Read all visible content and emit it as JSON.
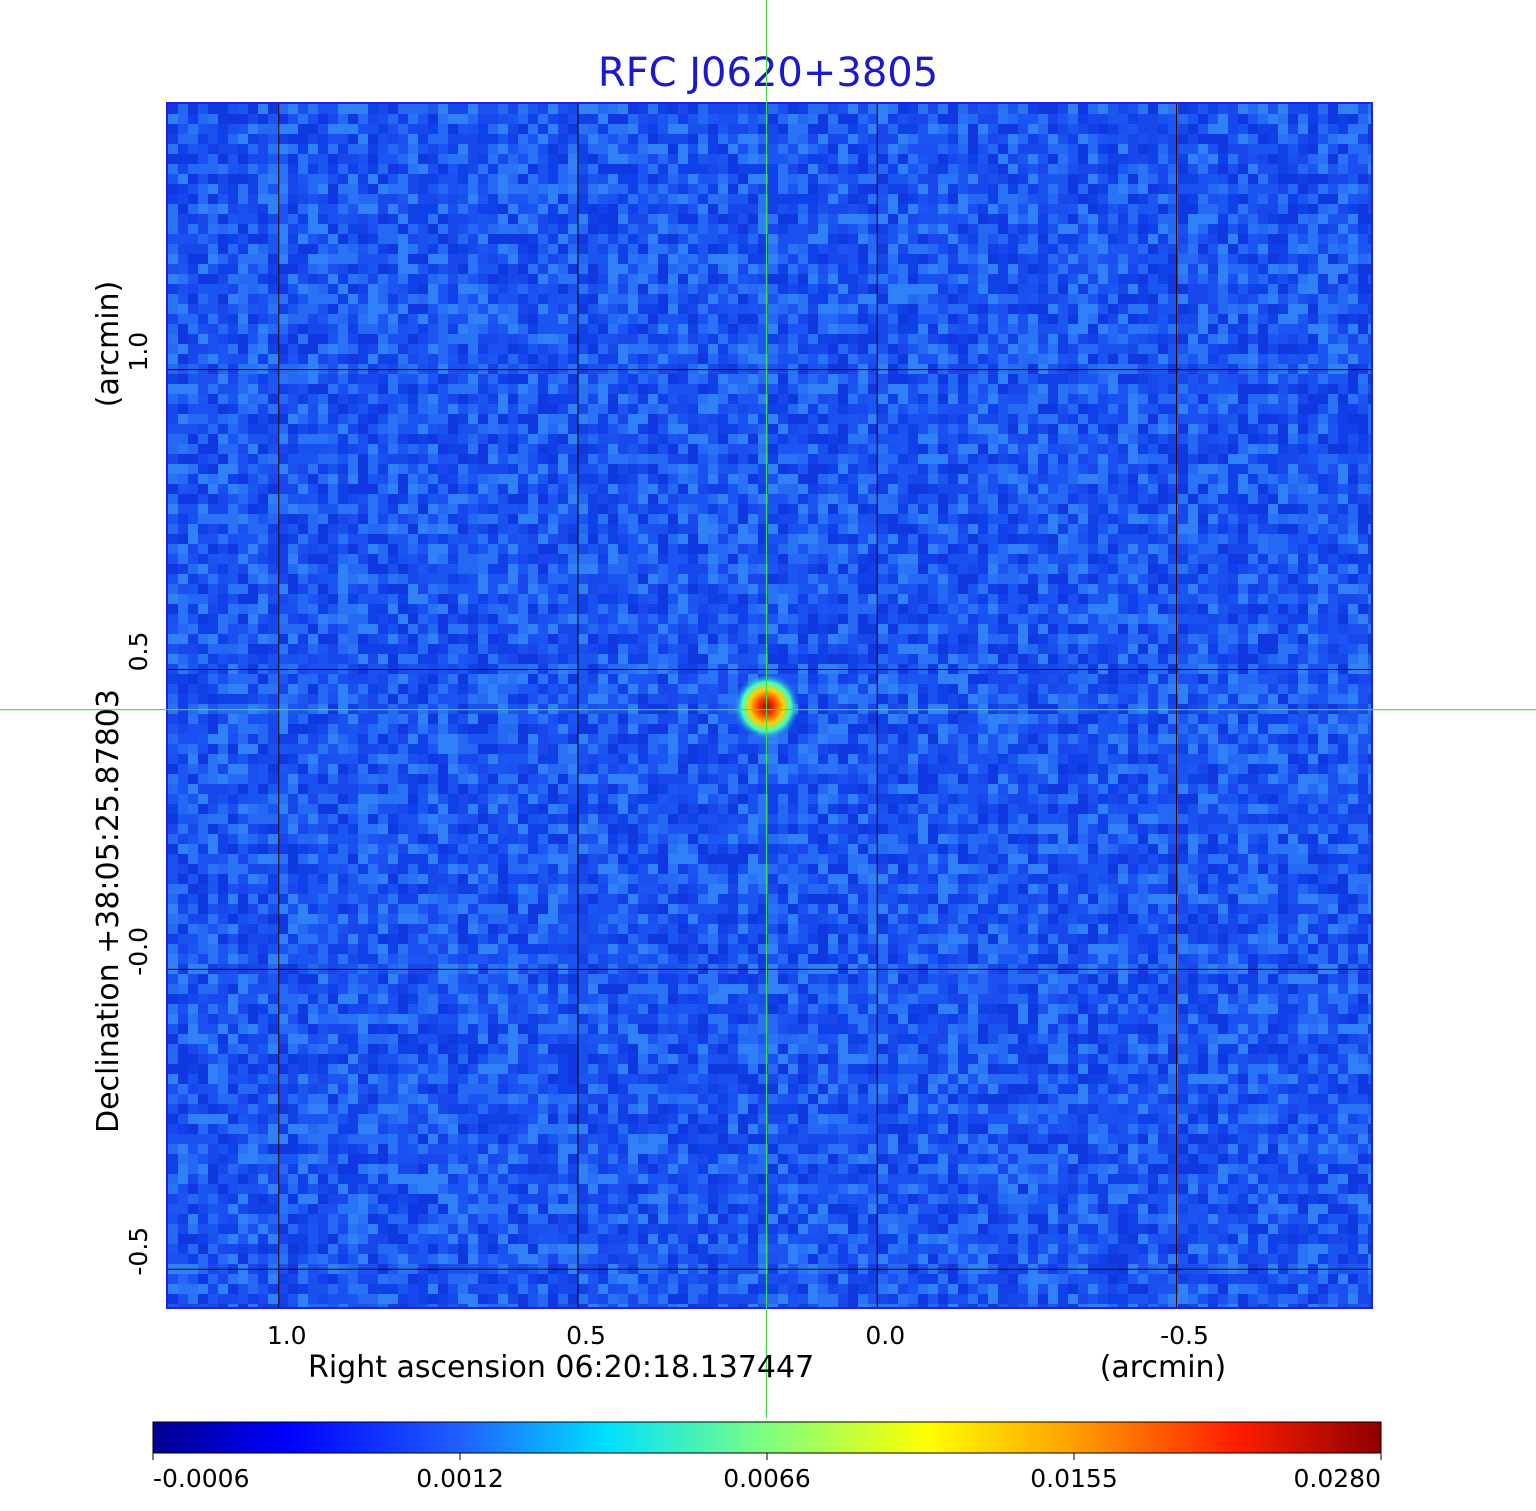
{
  "chart_data": {
    "type": "heatmap",
    "title": "RFC J0620+3805",
    "xlabel": "Right ascension  06:20:18.137447",
    "xunit": "(arcmin)",
    "ylabel": "Declination  +38:05:25.87803",
    "yunit": "(arcmin)",
    "x_ticks": [
      1.0,
      0.5,
      0.0,
      -0.5
    ],
    "x_tick_labels": [
      "1.0",
      "0.5",
      "0.0",
      "-0.5"
    ],
    "y_ticks": [
      1.0,
      0.5,
      0.0,
      -0.5
    ],
    "y_tick_labels": [
      "1.0",
      "0.5",
      "-0.0",
      "-0.5"
    ],
    "xlim": [
      1.185,
      -0.825
    ],
    "ylim": [
      -0.563,
      1.443
    ],
    "grid": true,
    "grid_color": "#000000",
    "crosshair": {
      "x": 0.185,
      "y": 0.433,
      "color": "#44dd44"
    },
    "source": {
      "x": 0.185,
      "y": 0.438,
      "peak": 0.028
    },
    "colormap": "jet",
    "colorbar": {
      "ticks": [
        -0.0006,
        0.0012,
        0.0066,
        0.0155,
        0.028
      ],
      "tick_labels": [
        "-0.0006",
        "0.0012",
        "0.0066",
        "0.0155",
        "0.0280"
      ],
      "scale": "nonlinear"
    },
    "colors": {
      "title": "#1a1acc",
      "frame": "#2222dd",
      "background_noise": "#1e5af0"
    }
  }
}
